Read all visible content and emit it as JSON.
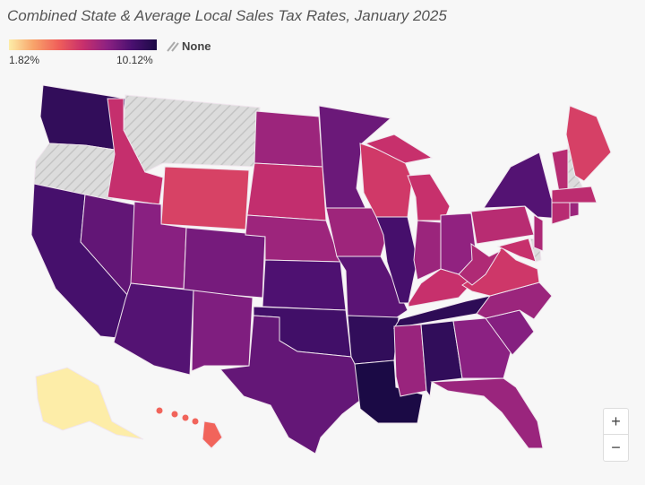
{
  "title": "Combined State & Average Local Sales Tax Rates, January 2025",
  "legend": {
    "min_label": "1.82%",
    "max_label": "10.12%",
    "min": 1.82,
    "max": 10.12,
    "none_label": "None",
    "colors": [
      "#fdeda8",
      "#f8a36a",
      "#f0605a",
      "#c8306c",
      "#8c2182",
      "#4a1070",
      "#1b0a45"
    ],
    "none_color": "#dcdcdc"
  },
  "controls": {
    "zoom_in": "+",
    "zoom_out": "−"
  },
  "states": {
    "LA": 10.12,
    "TN": 9.56,
    "AR": 9.46,
    "AL": 9.46,
    "WA": 9.43,
    "OK": 8.99,
    "IL": 8.86,
    "CA": 8.85,
    "KS": 8.65,
    "NY": 8.53,
    "AZ": 8.52,
    "MO": 8.39,
    "NV": 8.24,
    "TX": 8.2,
    "MN": 8.04,
    "CO": 7.81,
    "NM": 7.62,
    "SC": 7.49,
    "UT": 7.42,
    "GA": 7.38,
    "OH": 7.24,
    "MS": 7.06,
    "FL": 7.02,
    "NC": 7.0,
    "IN": 7.0,
    "RI": 7.0,
    "ND": 6.98,
    "NE": 6.97,
    "IA": 6.94,
    "NJ": 6.6,
    "WV": 6.55,
    "VT": 6.36,
    "CT": 6.35,
    "PA": 6.34,
    "MA": 6.25,
    "SD": 6.11,
    "ID": 6.03,
    "KY": 6.0,
    "MI": 6.0,
    "MD": 6.0,
    "VA": 5.77,
    "WI": 5.7,
    "ME": 5.5,
    "WY": 5.44,
    "HI": 4.5,
    "AK": 1.82,
    "OR": null,
    "MT": null,
    "NH": null,
    "DE": null
  }
}
